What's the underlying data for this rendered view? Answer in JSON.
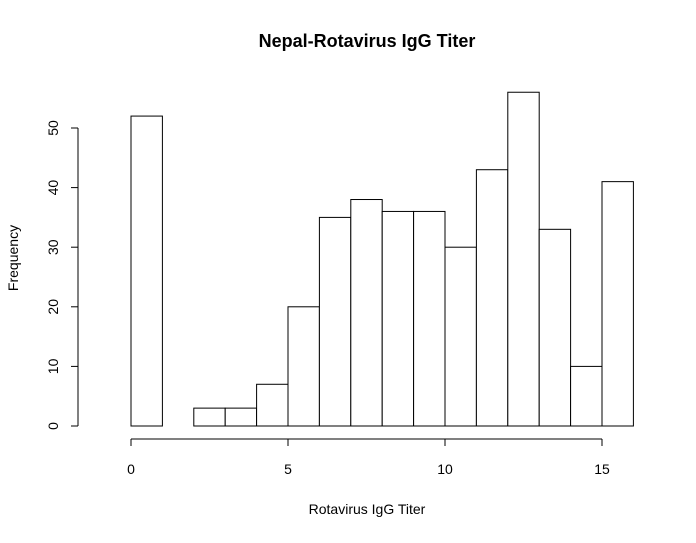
{
  "chart_data": {
    "type": "bar",
    "title": "Nepal-Rotavirus IgG Titer",
    "xlabel": "Rotavirus IgG Titer",
    "ylabel": "Frequency",
    "xlim": [
      0,
      16
    ],
    "ylim": [
      0,
      56
    ],
    "bins": [
      {
        "x0": 0,
        "x1": 1,
        "count": 52
      },
      {
        "x0": 1,
        "x1": 2,
        "count": 0
      },
      {
        "x0": 2,
        "x1": 3,
        "count": 3
      },
      {
        "x0": 3,
        "x1": 4,
        "count": 3
      },
      {
        "x0": 4,
        "x1": 5,
        "count": 7
      },
      {
        "x0": 5,
        "x1": 6,
        "count": 20
      },
      {
        "x0": 6,
        "x1": 7,
        "count": 35
      },
      {
        "x0": 7,
        "x1": 8,
        "count": 38
      },
      {
        "x0": 8,
        "x1": 9,
        "count": 36
      },
      {
        "x0": 9,
        "x1": 10,
        "count": 36
      },
      {
        "x0": 10,
        "x1": 11,
        "count": 30
      },
      {
        "x0": 11,
        "x1": 12,
        "count": 43
      },
      {
        "x0": 12,
        "x1": 13,
        "count": 56
      },
      {
        "x0": 13,
        "x1": 14,
        "count": 33
      },
      {
        "x0": 14,
        "x1": 15,
        "count": 10
      },
      {
        "x0": 15,
        "x1": 16,
        "count": 41
      }
    ],
    "x_ticks": [
      0,
      5,
      10,
      15
    ],
    "x_tick_labels": [
      "0",
      "5",
      "10",
      "15"
    ],
    "y_ticks": [
      0,
      10,
      20,
      30,
      40,
      50
    ],
    "y_tick_labels": [
      "0",
      "10",
      "20",
      "30",
      "40",
      "50"
    ],
    "grid": false,
    "legend": "none",
    "colors": {
      "bar_fill": "#ffffff",
      "bar_stroke": "#000000",
      "axis": "#000000"
    }
  }
}
